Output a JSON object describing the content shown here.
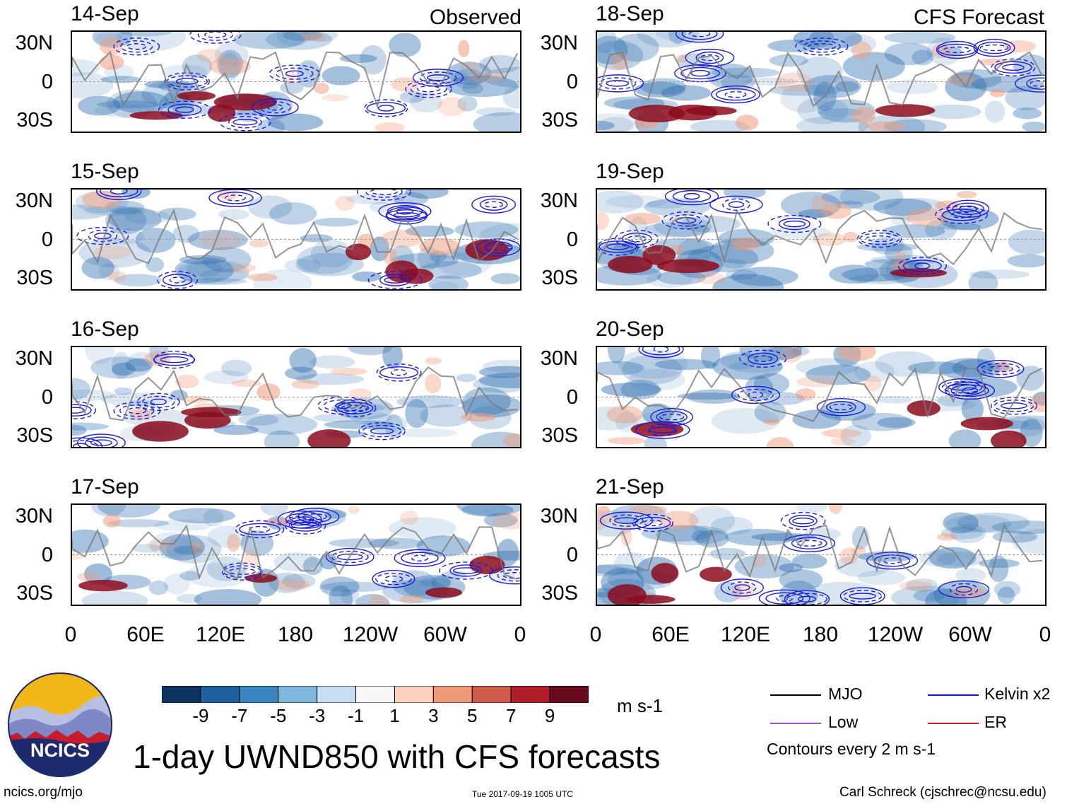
{
  "headers": {
    "observed": "Observed",
    "forecast": "CFS Forecast"
  },
  "panels": {
    "left": [
      {
        "date": "14-Sep"
      },
      {
        "date": "15-Sep"
      },
      {
        "date": "16-Sep"
      },
      {
        "date": "17-Sep"
      }
    ],
    "right": [
      {
        "date": "18-Sep"
      },
      {
        "date": "19-Sep"
      },
      {
        "date": "20-Sep"
      },
      {
        "date": "21-Sep"
      }
    ]
  },
  "lat_labels": [
    "30N",
    "0",
    "30S"
  ],
  "lon_labels": [
    "0",
    "60E",
    "120E",
    "180",
    "120W",
    "60W",
    "0"
  ],
  "colorbar": {
    "labels": [
      "-9",
      "-7",
      "-5",
      "-3",
      "-1",
      "1",
      "3",
      "5",
      "7",
      "9"
    ],
    "colors": [
      "#0b3461",
      "#1f5fa0",
      "#3a85c0",
      "#7fb6dc",
      "#c7def0",
      "#f7f7f7",
      "#fbd1bd",
      "#f09a78",
      "#d05a4a",
      "#b01e2c",
      "#6a0a1e"
    ],
    "units": "m s-1"
  },
  "legend": {
    "mjo": "MJO",
    "kelvin": "Kelvin x2",
    "low": "Low",
    "er": "ER",
    "contours": "Contours every 2 m s-1",
    "colors": {
      "mjo": "#000000",
      "kelvin": "#1515d8",
      "low": "#a64dd0",
      "er": "#d01818"
    }
  },
  "title": "1-day UWND850 with CFS forecasts",
  "logo": {
    "text": "NCICS"
  },
  "footer": {
    "url": "ncics.org/mjo",
    "timestamp": "Tue 2017-09-19 1005 UTC",
    "author": "Carl Schreck (cjschrec@ncsu.edu)"
  },
  "map_layers": {
    "blue": "#2f6fb0",
    "red": "#8c0a1c",
    "contour": "#1a1ae0",
    "coast": "#7a7a7a"
  }
}
